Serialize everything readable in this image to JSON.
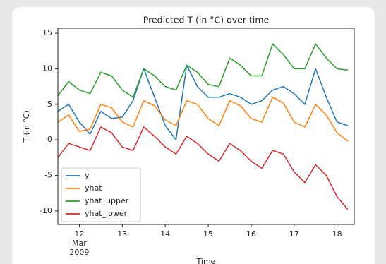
{
  "chart_data": {
    "type": "line",
    "title": "Predicted T (in °C) over time",
    "xlabel": "Time",
    "ylabel": "T (in °C)",
    "x": [
      11.5,
      11.75,
      12,
      12.25,
      12.5,
      12.75,
      13,
      13.25,
      13.5,
      13.75,
      14,
      14.25,
      14.5,
      14.75,
      15,
      15.25,
      15.5,
      15.75,
      16,
      16.25,
      16.5,
      16.75,
      17,
      17.25,
      17.5,
      17.75,
      18,
      18.25
    ],
    "series": [
      {
        "name": "y",
        "color": "#1f77b4",
        "values": [
          4.0,
          5.0,
          2.5,
          0.8,
          4.0,
          3.0,
          3.2,
          5.5,
          10.0,
          6.0,
          2.0,
          0.0,
          10.5,
          7.5,
          6.0,
          6.0,
          6.5,
          6.0,
          5.0,
          5.5,
          7.0,
          7.5,
          6.5,
          5.0,
          10.0,
          6.0,
          2.5,
          2.0
        ]
      },
      {
        "name": "yhat",
        "color": "#ff7f0e",
        "values": [
          2.5,
          3.5,
          1.2,
          1.5,
          5.0,
          4.5,
          2.5,
          1.8,
          5.5,
          4.8,
          2.8,
          2.0,
          5.5,
          5.0,
          3.0,
          2.0,
          5.5,
          4.8,
          3.0,
          2.5,
          6.0,
          5.2,
          2.5,
          1.8,
          5.0,
          3.5,
          1.0,
          -0.2
        ]
      },
      {
        "name": "yhat_upper",
        "color": "#2ca02c",
        "values": [
          6.2,
          8.2,
          7.0,
          6.5,
          9.5,
          9.0,
          7.0,
          6.0,
          10.0,
          9.0,
          7.5,
          7.0,
          10.5,
          9.5,
          7.8,
          7.5,
          11.5,
          10.5,
          9.0,
          9.0,
          13.5,
          12.0,
          10.0,
          10.0,
          13.5,
          11.5,
          10.0,
          9.8
        ]
      },
      {
        "name": "yhat_lower",
        "color": "#d62728",
        "values": [
          -2.5,
          -0.5,
          -1.0,
          -1.5,
          1.8,
          1.0,
          -1.0,
          -1.5,
          1.8,
          0.5,
          -1.0,
          -2.0,
          0.5,
          -0.5,
          -2.0,
          -3.0,
          -0.5,
          -1.5,
          -3.0,
          -4.0,
          -1.5,
          -2.0,
          -4.5,
          -6.0,
          -3.5,
          -5.0,
          -8.0,
          -9.8
        ]
      }
    ],
    "xlim": [
      11.5,
      18.4
    ],
    "xticks": [
      12,
      13,
      14,
      15,
      16,
      17,
      18
    ],
    "xtick_month": "Mar",
    "xtick_year": "2009",
    "ylim": [
      -11.9,
      15.7
    ],
    "yticks": [
      -10,
      -5,
      0,
      5,
      10,
      15
    ],
    "grid": false,
    "legend": "lower left"
  }
}
